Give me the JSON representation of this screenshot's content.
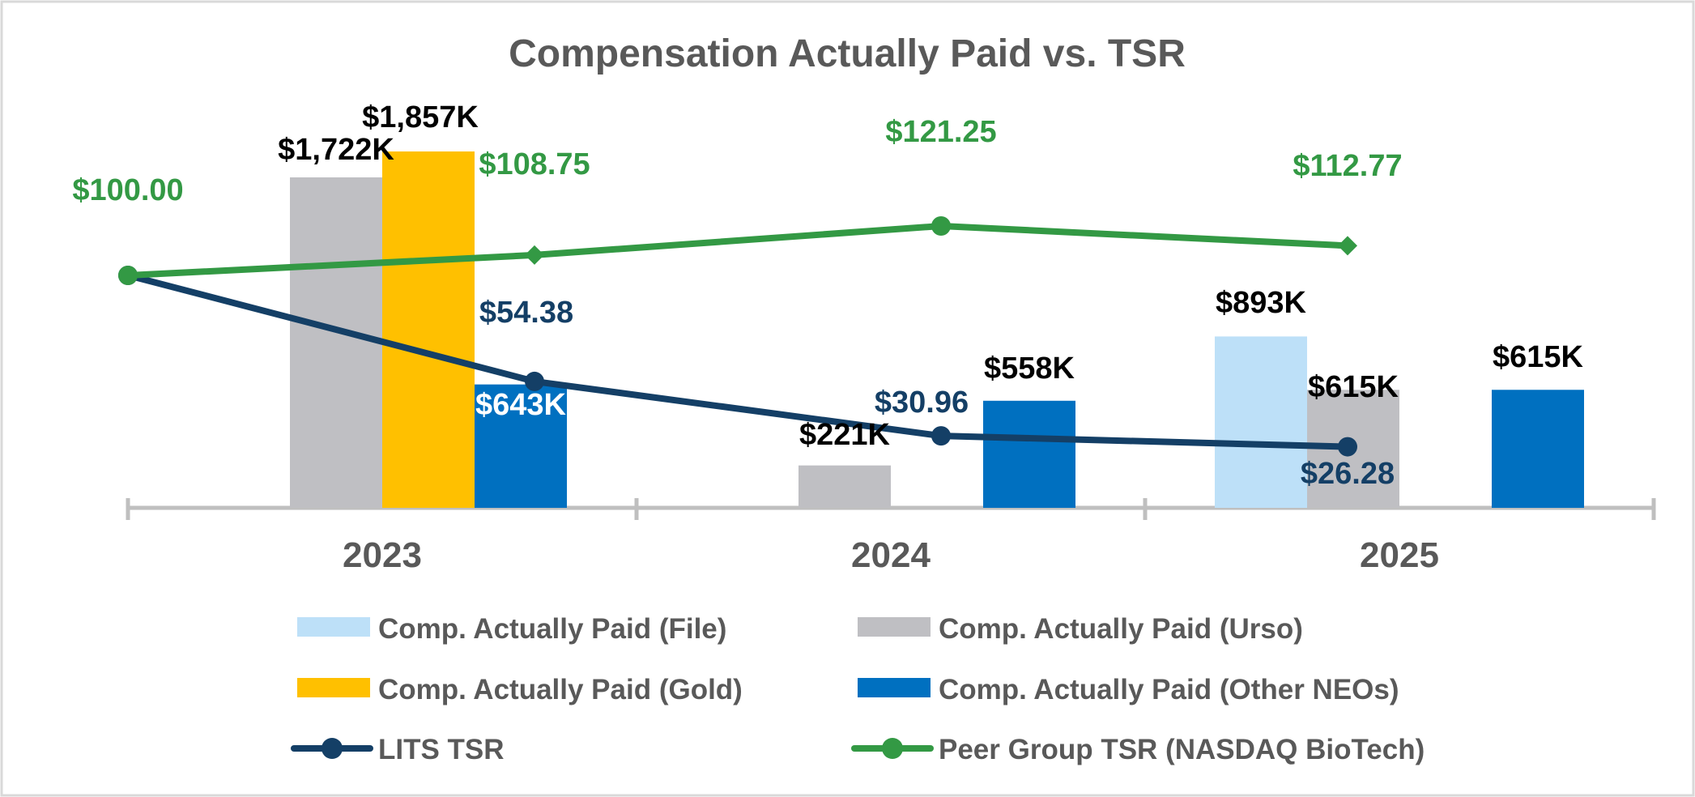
{
  "chart_data": {
    "type": "bar+line",
    "title": "Compensation Actually Paid vs. TSR",
    "categories": [
      "2023",
      "2024",
      "2025"
    ],
    "bar_series": [
      {
        "name": "Comp. Actually Paid (File)",
        "color": "#bde0f8",
        "values": [
          null,
          null,
          893
        ],
        "labels": [
          null,
          null,
          "$893K"
        ]
      },
      {
        "name": "Comp. Actually Paid (Urso)",
        "color": "#bfbfc3",
        "values": [
          1722,
          221,
          615
        ],
        "labels": [
          "$1,722K",
          "$221K",
          "$615K"
        ]
      },
      {
        "name": "Comp. Actually Paid (Gold)",
        "color": "#ffc000",
        "values": [
          1857,
          null,
          null
        ],
        "labels": [
          "$1,857K",
          null,
          null
        ]
      },
      {
        "name": "Comp. Actually Paid (Other NEOs)",
        "color": "#0070c0",
        "values": [
          643,
          558,
          615
        ],
        "labels": [
          "$643K",
          "$558K",
          "$615K"
        ]
      }
    ],
    "line_series": [
      {
        "name": "LITS TSR",
        "color": "#143f66",
        "x": [
          "start",
          "2023",
          "2024",
          "2025"
        ],
        "values": [
          100.0,
          54.38,
          30.96,
          26.28
        ],
        "labels": [
          "$100.00",
          "$54.38",
          "$30.96",
          "$26.28"
        ]
      },
      {
        "name": "Peer Group TSR (NASDAQ BioTech)",
        "color": "#339944",
        "x": [
          "start",
          "2023",
          "2024",
          "2025"
        ],
        "values": [
          100.0,
          108.75,
          121.25,
          112.77
        ],
        "labels": [
          "$100.00",
          "$108.75",
          "$121.25",
          "$112.77"
        ]
      }
    ],
    "bar_axis": {
      "unit": "$K",
      "range": [
        0,
        2000
      ]
    },
    "line_axis": {
      "unit": "$",
      "range": [
        0,
        175
      ]
    },
    "grid": false,
    "legend": {
      "position": "bottom",
      "items": [
        {
          "name": "Comp. Actually Paid (File)",
          "kind": "bar",
          "color": "#bde0f8"
        },
        {
          "name": "Comp. Actually Paid (Urso)",
          "kind": "bar",
          "color": "#bfbfc3"
        },
        {
          "name": "Comp. Actually Paid (Gold)",
          "kind": "bar",
          "color": "#ffc000"
        },
        {
          "name": "Comp. Actually Paid (Other NEOs)",
          "kind": "bar",
          "color": "#0070c0"
        },
        {
          "name": "LITS TSR",
          "kind": "line",
          "color": "#143f66"
        },
        {
          "name": "Peer Group TSR (NASDAQ BioTech)",
          "kind": "line",
          "color": "#339944"
        }
      ]
    }
  }
}
